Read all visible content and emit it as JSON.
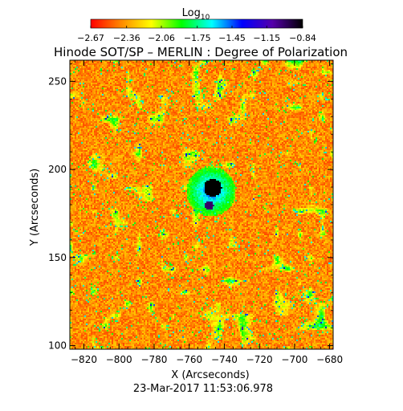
{
  "chart_data": {
    "type": "heatmap",
    "title": "Hinode SOT/SP – MERLIN : Degree of Polarization",
    "xlabel": "X (Arcseconds)",
    "ylabel": "Y (Arcseconds)",
    "xlim": [
      -828,
      -678
    ],
    "ylim": [
      98,
      262
    ],
    "x_ticks": [
      -820,
      -800,
      -780,
      -760,
      -740,
      -720,
      -700,
      -680
    ],
    "x_tick_labels": [
      "−820",
      "−800",
      "−780",
      "−760",
      "−740",
      "−720",
      "−700",
      "−680"
    ],
    "y_ticks": [
      100,
      150,
      200,
      250
    ],
    "y_tick_labels": [
      "100",
      "150",
      "200",
      "250"
    ],
    "timestamp": "23-Mar-2017 11:53:06.978",
    "colorbar": {
      "label_main": "Log",
      "label_sub": "10",
      "range": [
        -2.67,
        -0.84
      ],
      "ticks": [
        -2.67,
        -2.36,
        -2.06,
        -1.75,
        -1.45,
        -1.15,
        -0.84
      ],
      "tick_labels": [
        "−2.67",
        "−2.36",
        "−2.06",
        "−1.75",
        "−1.45",
        "−1.15",
        "−0.84"
      ],
      "colors": [
        "#ff0000",
        "#ff8800",
        "#ffff00",
        "#00ff00",
        "#00ffff",
        "#0000ff",
        "#5500aa",
        "#000000"
      ]
    },
    "features": [
      {
        "kind": "umbra",
        "x": -747,
        "y": 190,
        "value": -0.84
      },
      {
        "kind": "pore",
        "x": -749,
        "y": 180,
        "value": -1.0
      },
      {
        "kind": "penumbra",
        "x": -748,
        "y": 188,
        "value": -1.5
      }
    ]
  }
}
